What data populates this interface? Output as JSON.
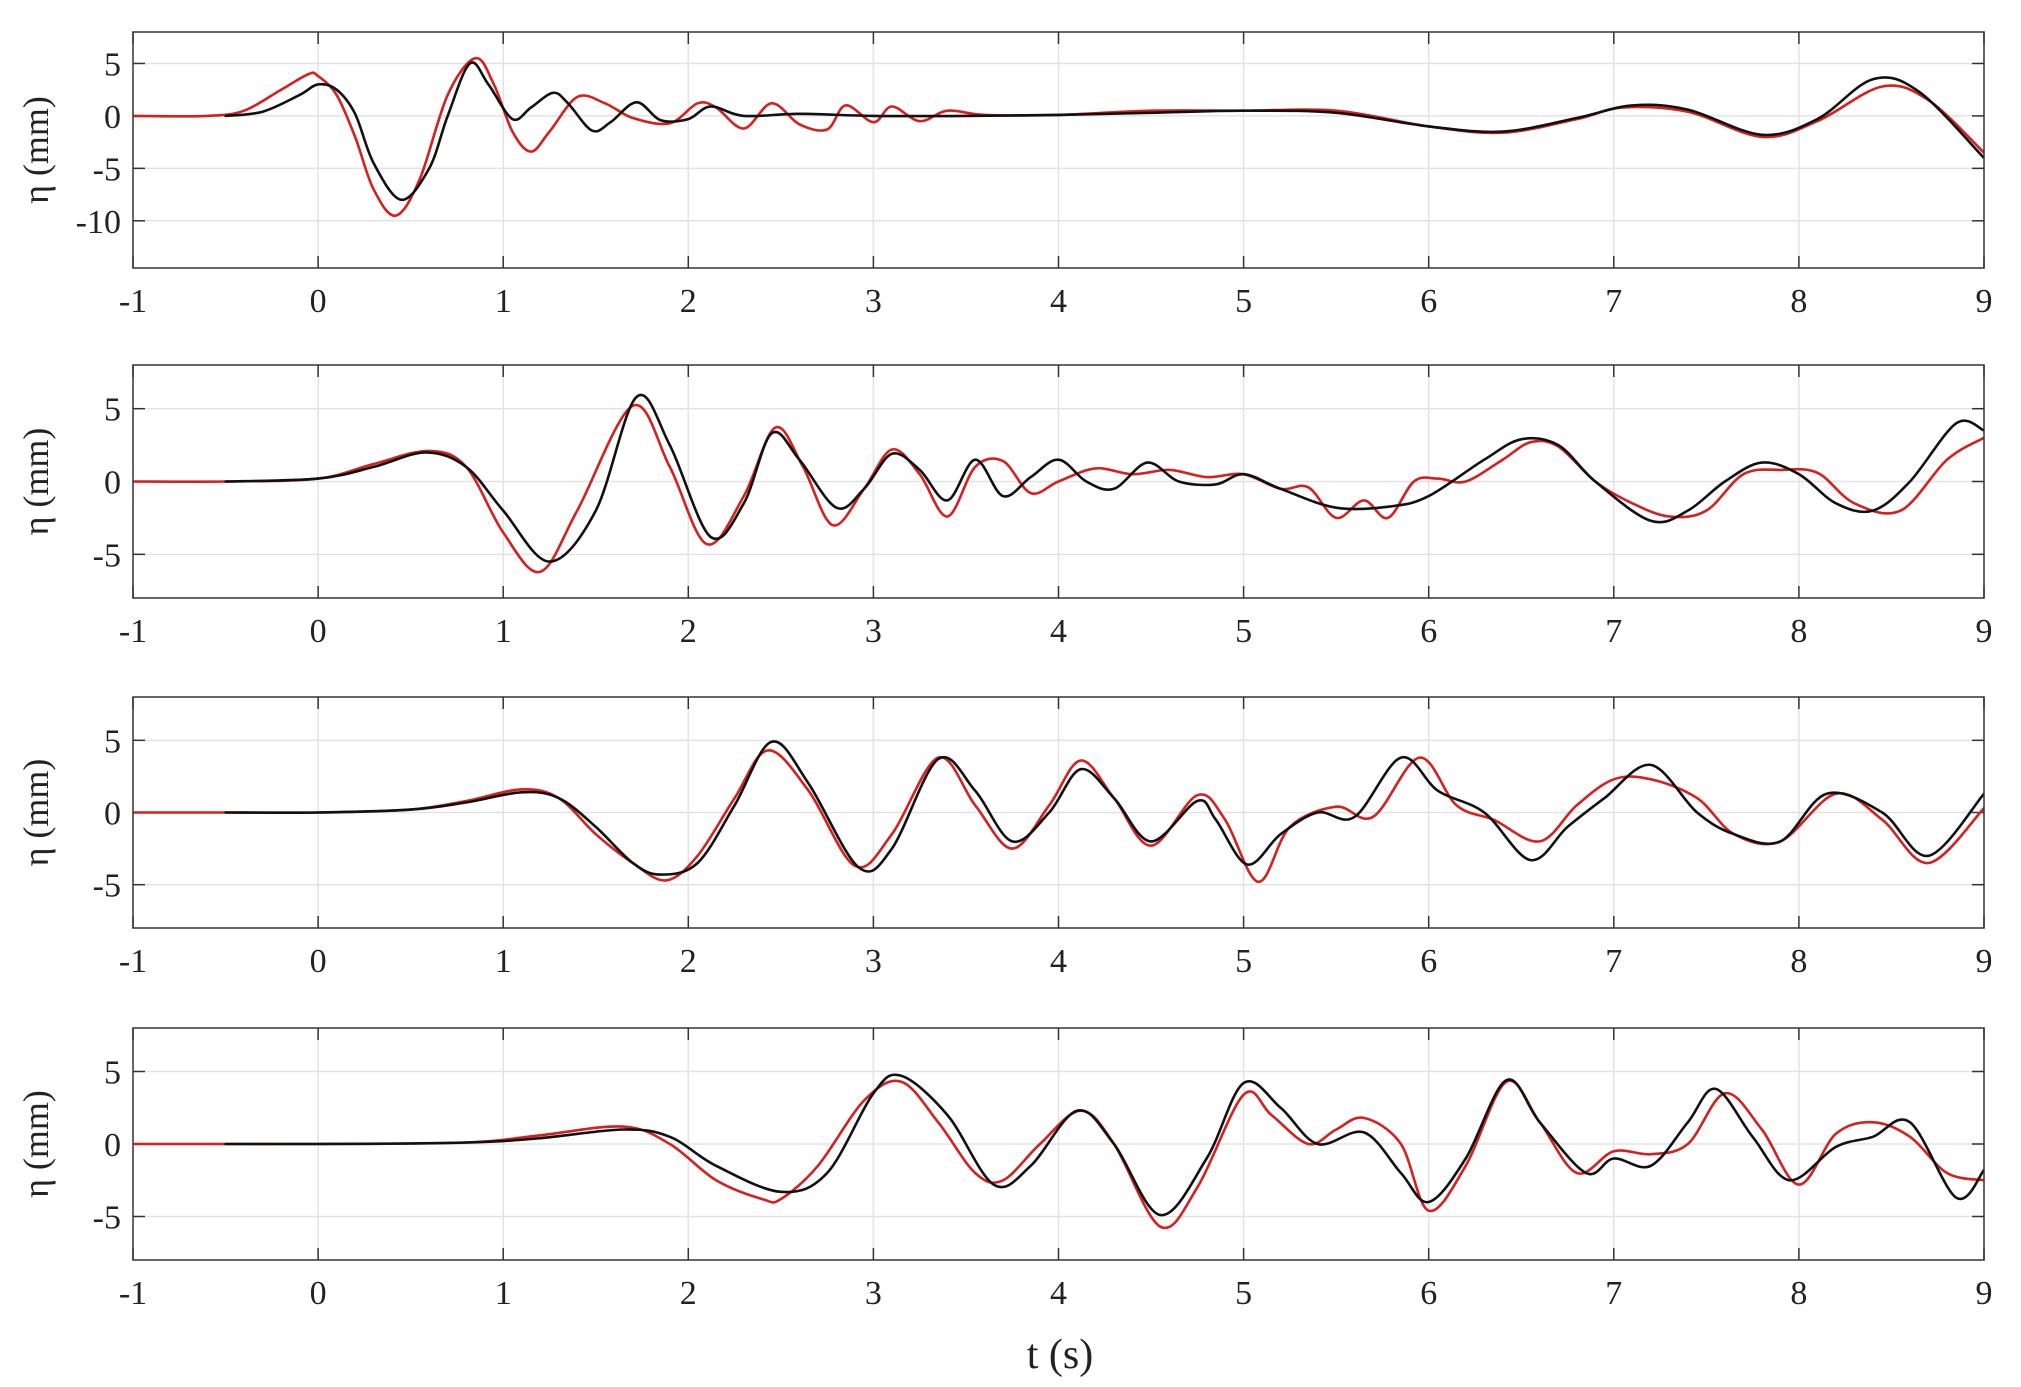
{
  "chart_data": [
    {
      "type": "line",
      "ylabel": "η (mm)",
      "xlabel": "",
      "xlim": [
        -1,
        9
      ],
      "ylim": [
        -14.5,
        8
      ],
      "xticks": [
        "-1",
        "0",
        "1",
        "2",
        "3",
        "4",
        "5",
        "6",
        "7",
        "8",
        "9"
      ],
      "yticks": [
        "5",
        "0",
        "-5",
        "-10"
      ],
      "ytick_values": [
        5,
        0,
        -5,
        -10
      ],
      "grid": true,
      "series": [
        {
          "color": "#d62020",
          "x": [
            -1,
            -0.6,
            -0.4,
            -0.2,
            -0.05,
            0.0,
            0.1,
            0.2,
            0.3,
            0.42,
            0.55,
            0.7,
            0.85,
            0.95,
            1.05,
            1.15,
            1.25,
            1.4,
            1.55,
            1.7,
            1.9,
            2.05,
            2.15,
            2.3,
            2.45,
            2.6,
            2.75,
            2.85,
            3.0,
            3.1,
            3.25,
            3.4,
            3.6,
            4.0,
            4.5,
            5.0,
            5.5,
            6.0,
            6.4,
            6.8,
            7.05,
            7.4,
            7.8,
            8.1,
            8.45,
            8.7,
            9.0
          ],
          "y": [
            0,
            0,
            0.5,
            2.5,
            4.0,
            3.8,
            2.0,
            -2.0,
            -7.0,
            -9.5,
            -6.0,
            2.0,
            5.5,
            3.0,
            -1.5,
            -3.4,
            -1.5,
            1.8,
            1.2,
            -0.2,
            -0.7,
            1.2,
            0.8,
            -1.2,
            1.2,
            -0.8,
            -1.3,
            1.0,
            -0.6,
            0.9,
            -0.5,
            0.5,
            0.1,
            0.1,
            0.5,
            0.5,
            0.5,
            -1.0,
            -1.6,
            -0.3,
            0.8,
            0.4,
            -2.0,
            -0.5,
            2.8,
            1.5,
            -3.5
          ]
        },
        {
          "color": "#111111",
          "x": [
            -0.5,
            -0.3,
            -0.1,
            0.0,
            0.1,
            0.2,
            0.3,
            0.45,
            0.6,
            0.7,
            0.82,
            0.92,
            1.05,
            1.15,
            1.27,
            1.35,
            1.48,
            1.58,
            1.72,
            1.85,
            2.0,
            2.12,
            2.3,
            2.6,
            3.0,
            3.5,
            4.0,
            4.5,
            5.0,
            5.5,
            6.0,
            6.4,
            6.8,
            7.1,
            7.4,
            7.8,
            8.1,
            8.4,
            8.65,
            9.0
          ],
          "y": [
            0,
            0.4,
            2.0,
            3.0,
            2.5,
            0.2,
            -4.5,
            -8.0,
            -5.0,
            0.0,
            5.0,
            3.0,
            -0.3,
            0.8,
            2.2,
            1.2,
            -1.4,
            -0.6,
            1.3,
            -0.4,
            -0.3,
            0.9,
            0.0,
            0.2,
            0.0,
            0.0,
            0.1,
            0.3,
            0.5,
            0.3,
            -1.0,
            -1.5,
            -0.2,
            1.0,
            0.6,
            -1.8,
            -0.3,
            3.5,
            2.3,
            -4.0
          ]
        }
      ]
    },
    {
      "type": "line",
      "ylabel": "η (mm)",
      "xlabel": "",
      "xlim": [
        -1,
        9
      ],
      "ylim": [
        -8,
        8
      ],
      "xticks": [
        "-1",
        "0",
        "1",
        "2",
        "3",
        "4",
        "5",
        "6",
        "7",
        "8",
        "9"
      ],
      "yticks": [
        "5",
        "0",
        "-5"
      ],
      "ytick_values": [
        5,
        0,
        -5
      ],
      "grid": true,
      "series": [
        {
          "color": "#d62020",
          "x": [
            -1,
            -0.5,
            0.0,
            0.3,
            0.6,
            0.8,
            1.0,
            1.2,
            1.4,
            1.7,
            1.9,
            2.1,
            2.3,
            2.47,
            2.62,
            2.78,
            2.95,
            3.1,
            3.25,
            3.4,
            3.55,
            3.7,
            3.85,
            4.0,
            4.2,
            4.4,
            4.6,
            4.8,
            5.0,
            5.2,
            5.35,
            5.5,
            5.65,
            5.78,
            5.92,
            6.05,
            6.2,
            6.4,
            6.55,
            6.7,
            6.9,
            7.1,
            7.3,
            7.5,
            7.7,
            7.9,
            8.1,
            8.3,
            8.55,
            8.8,
            9.0
          ],
          "y": [
            0,
            0,
            0.2,
            1.2,
            2.1,
            1.0,
            -3.5,
            -6.2,
            -2.0,
            5.2,
            1.0,
            -4.3,
            -1.0,
            3.7,
            1.0,
            -3.0,
            -0.5,
            2.2,
            0.5,
            -2.4,
            1.0,
            1.4,
            -0.8,
            0.0,
            0.9,
            0.5,
            0.8,
            0.3,
            0.5,
            -0.5,
            -0.4,
            -2.5,
            -1.3,
            -2.5,
            0.0,
            0.2,
            0.0,
            1.5,
            2.7,
            2.4,
            0.0,
            -1.5,
            -2.4,
            -2.0,
            0.5,
            0.8,
            0.6,
            -1.5,
            -2.0,
            1.5,
            3.0
          ]
        },
        {
          "color": "#111111",
          "x": [
            -0.5,
            0.0,
            0.3,
            0.58,
            0.8,
            1.0,
            1.25,
            1.5,
            1.72,
            1.9,
            2.12,
            2.3,
            2.45,
            2.6,
            2.8,
            2.95,
            3.1,
            3.25,
            3.4,
            3.55,
            3.7,
            3.85,
            4.0,
            4.15,
            4.3,
            4.48,
            4.65,
            4.85,
            5.0,
            5.2,
            5.5,
            5.8,
            6.0,
            6.3,
            6.5,
            6.7,
            6.9,
            7.2,
            7.4,
            7.6,
            7.8,
            8.0,
            8.2,
            8.4,
            8.6,
            8.85,
            9.0
          ],
          "y": [
            0,
            0.2,
            1.0,
            2.0,
            1.0,
            -2.0,
            -5.5,
            -2.0,
            5.8,
            2.5,
            -3.8,
            -1.5,
            3.3,
            1.5,
            -1.8,
            -0.5,
            1.9,
            0.8,
            -1.3,
            1.5,
            -1.0,
            0.3,
            1.5,
            0.0,
            -0.5,
            1.3,
            0.0,
            -0.2,
            0.5,
            -0.5,
            -1.8,
            -1.7,
            -1.0,
            1.5,
            2.9,
            2.5,
            0.0,
            -2.7,
            -2.0,
            0.0,
            1.3,
            0.5,
            -1.5,
            -2.0,
            0.0,
            4.0,
            3.5
          ]
        }
      ]
    },
    {
      "type": "line",
      "ylabel": "η (mm)",
      "xlabel": "",
      "xlim": [
        -1,
        9
      ],
      "ylim": [
        -8,
        8
      ],
      "xticks": [
        "-1",
        "0",
        "1",
        "2",
        "3",
        "4",
        "5",
        "6",
        "7",
        "8",
        "9"
      ],
      "yticks": [
        "5",
        "0",
        "-5"
      ],
      "ytick_values": [
        5,
        0,
        -5
      ],
      "grid": true,
      "series": [
        {
          "color": "#d62020",
          "x": [
            -1,
            -0.5,
            0.0,
            0.5,
            0.8,
            1.1,
            1.3,
            1.5,
            1.7,
            1.88,
            2.05,
            2.25,
            2.43,
            2.65,
            2.9,
            3.1,
            3.35,
            3.55,
            3.75,
            3.95,
            4.12,
            4.3,
            4.5,
            4.75,
            4.9,
            5.08,
            5.25,
            5.5,
            5.7,
            5.95,
            6.15,
            6.35,
            6.6,
            6.8,
            7.0,
            7.2,
            7.45,
            7.65,
            7.9,
            8.2,
            8.45,
            8.7,
            9.0
          ],
          "y": [
            0,
            0,
            0.0,
            0.2,
            0.8,
            1.6,
            1.0,
            -1.5,
            -3.5,
            -4.7,
            -3.0,
            1.0,
            4.3,
            1.5,
            -3.7,
            -1.5,
            3.8,
            0.5,
            -2.5,
            0.5,
            3.6,
            1.0,
            -2.3,
            1.2,
            -0.5,
            -4.8,
            -1.0,
            0.4,
            -0.3,
            3.8,
            0.5,
            -0.5,
            -2.0,
            0.5,
            2.3,
            2.3,
            1.0,
            -1.5,
            -2.0,
            1.3,
            -0.5,
            -3.5,
            0.3
          ]
        },
        {
          "color": "#111111",
          "x": [
            -0.5,
            0.0,
            0.5,
            0.8,
            1.1,
            1.3,
            1.5,
            1.7,
            1.85,
            2.05,
            2.25,
            2.45,
            2.65,
            2.92,
            3.1,
            3.35,
            3.55,
            3.75,
            3.95,
            4.12,
            4.3,
            4.5,
            4.75,
            4.85,
            5.02,
            5.2,
            5.4,
            5.6,
            5.85,
            6.05,
            6.3,
            6.55,
            6.75,
            6.95,
            7.2,
            7.45,
            7.65,
            7.9,
            8.15,
            8.45,
            8.7,
            9.0
          ],
          "y": [
            0,
            0,
            0.2,
            0.7,
            1.4,
            1.0,
            -1.0,
            -3.5,
            -4.3,
            -3.5,
            0.5,
            4.9,
            2.0,
            -3.8,
            -2.5,
            3.7,
            1.5,
            -2.0,
            0.0,
            3.0,
            1.0,
            -2.0,
            0.8,
            -0.5,
            -3.6,
            -1.5,
            0.0,
            -0.3,
            3.8,
            1.5,
            0.0,
            -3.3,
            -1.0,
            1.0,
            3.3,
            0.0,
            -1.5,
            -2.0,
            1.3,
            0.0,
            -3.0,
            1.3
          ]
        }
      ]
    },
    {
      "type": "line",
      "ylabel": "η (mm)",
      "xlabel": "t (s)",
      "xlim": [
        -1,
        9
      ],
      "ylim": [
        -8,
        8
      ],
      "xticks": [
        "-1",
        "0",
        "1",
        "2",
        "3",
        "4",
        "5",
        "6",
        "7",
        "8",
        "9"
      ],
      "yticks": [
        "5",
        "0",
        "-5"
      ],
      "ytick_values": [
        5,
        0,
        -5
      ],
      "grid": true,
      "series": [
        {
          "color": "#d62020",
          "x": [
            -1,
            -0.5,
            0.0,
            0.8,
            1.2,
            1.65,
            1.9,
            2.15,
            2.4,
            2.5,
            2.7,
            2.95,
            3.15,
            3.35,
            3.55,
            3.7,
            3.9,
            4.12,
            4.3,
            4.55,
            4.75,
            5.0,
            5.15,
            5.35,
            5.5,
            5.65,
            5.85,
            6.0,
            6.2,
            6.42,
            6.6,
            6.8,
            7.0,
            7.2,
            7.4,
            7.6,
            7.8,
            8.0,
            8.2,
            8.4,
            8.6,
            8.8,
            9.0
          ],
          "y": [
            0,
            0,
            0.0,
            0.1,
            0.6,
            1.2,
            0.0,
            -2.5,
            -3.8,
            -3.8,
            -1.5,
            3.0,
            4.3,
            1.5,
            -2.0,
            -2.5,
            0.0,
            2.3,
            0.0,
            -5.7,
            -3.0,
            3.4,
            2.0,
            0.0,
            1.0,
            1.8,
            0.0,
            -4.6,
            -1.5,
            4.3,
            1.5,
            -2.0,
            -0.5,
            -0.7,
            0.0,
            3.5,
            1.0,
            -2.8,
            0.7,
            1.5,
            0.5,
            -2.0,
            -2.5
          ]
        },
        {
          "color": "#111111",
          "x": [
            -0.5,
            0.0,
            0.8,
            1.2,
            1.65,
            1.9,
            2.15,
            2.5,
            2.75,
            3.0,
            3.15,
            3.4,
            3.65,
            3.85,
            4.1,
            4.3,
            4.55,
            4.8,
            5.0,
            5.2,
            5.4,
            5.65,
            5.85,
            6.0,
            6.2,
            6.42,
            6.6,
            6.85,
            7.0,
            7.2,
            7.4,
            7.55,
            7.75,
            7.95,
            8.2,
            8.4,
            8.6,
            8.85,
            9.0
          ],
          "y": [
            0,
            0,
            0.1,
            0.4,
            1.0,
            0.5,
            -1.5,
            -3.3,
            -2.0,
            3.5,
            4.7,
            2.0,
            -2.8,
            -1.5,
            2.3,
            0.0,
            -4.9,
            -1.0,
            4.2,
            2.5,
            0.0,
            0.8,
            -2.0,
            -4.0,
            -1.0,
            4.4,
            1.5,
            -2.0,
            -1.0,
            -1.5,
            1.5,
            3.8,
            0.5,
            -2.5,
            -0.2,
            0.5,
            1.5,
            -3.7,
            -1.8
          ]
        }
      ]
    }
  ]
}
